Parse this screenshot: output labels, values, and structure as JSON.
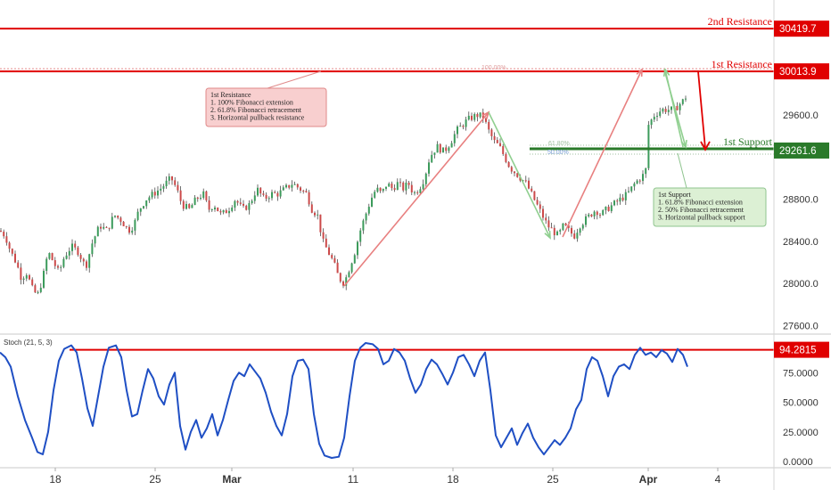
{
  "chart_data": [
    {
      "type": "candlestick",
      "yticks": [
        "30419.7",
        "30013.9",
        "29600.0",
        "29261.6",
        "28800.0",
        "28400.0",
        "28000.0",
        "27600.0"
      ],
      "ylim": [
        27500,
        30600
      ],
      "resistance_2": {
        "label": "2nd Resistance",
        "price": 30419.7,
        "badge": "30419.7"
      },
      "resistance_1": {
        "label": "1st Resistance",
        "price": 30013.9,
        "badge": "30013.9",
        "fib_label": "100.00%"
      },
      "support_1": {
        "label": "1st Support",
        "price": 29261.6,
        "badge": "29261.6",
        "fib_618": "61.80%",
        "fib_50": "50.00%"
      },
      "annotations": {
        "resistance_box": [
          "1st Resistance",
          "1. 100% Fibonacci extension",
          "2. 61.8% Fibonacci retracement",
          "3. Horizontal pullback resistance"
        ],
        "support_box": [
          "1st Support",
          "1. 61.8% Fibonacci extension",
          "2. 50% Fibonacci retracement",
          "3. Horizontal pullback support"
        ]
      },
      "close_path": [
        [
          0,
          28500
        ],
        [
          6,
          28450
        ],
        [
          12,
          28300
        ],
        [
          18,
          28200
        ],
        [
          24,
          28050
        ],
        [
          30,
          28100
        ],
        [
          36,
          27950
        ],
        [
          42,
          27880
        ],
        [
          48,
          28050
        ],
        [
          54,
          28300
        ],
        [
          60,
          28200
        ],
        [
          66,
          28100
        ],
        [
          72,
          28250
        ],
        [
          80,
          28350
        ],
        [
          88,
          28300
        ],
        [
          96,
          28150
        ],
        [
          104,
          28400
        ],
        [
          112,
          28550
        ],
        [
          120,
          28500
        ],
        [
          128,
          28650
        ],
        [
          136,
          28600
        ],
        [
          144,
          28500
        ],
        [
          150,
          28550
        ],
        [
          156,
          28700
        ],
        [
          164,
          28800
        ],
        [
          172,
          28850
        ],
        [
          180,
          28900
        ],
        [
          186,
          28950
        ],
        [
          192,
          29000
        ],
        [
          198,
          28900
        ],
        [
          204,
          28750
        ],
        [
          212,
          28700
        ],
        [
          220,
          28800
        ],
        [
          228,
          28850
        ],
        [
          234,
          28700
        ],
        [
          240,
          28750
        ],
        [
          248,
          28650
        ],
        [
          256,
          28700
        ],
        [
          264,
          28800
        ],
        [
          272,
          28700
        ],
        [
          280,
          28750
        ],
        [
          288,
          28900
        ],
        [
          296,
          28800
        ],
        [
          304,
          28850
        ],
        [
          312,
          28850
        ],
        [
          320,
          28900
        ],
        [
          328,
          28950
        ],
        [
          336,
          28900
        ],
        [
          344,
          28850
        ],
        [
          350,
          28700
        ],
        [
          356,
          28650
        ],
        [
          362,
          28400
        ],
        [
          368,
          28300
        ],
        [
          374,
          28200
        ],
        [
          380,
          28050
        ],
        [
          386,
          28000
        ],
        [
          392,
          28150
        ],
        [
          398,
          28300
        ],
        [
          404,
          28500
        ],
        [
          410,
          28650
        ],
        [
          416,
          28800
        ],
        [
          422,
          28900
        ],
        [
          428,
          28850
        ],
        [
          434,
          28950
        ],
        [
          440,
          28900
        ],
        [
          446,
          28950
        ],
        [
          452,
          28900
        ],
        [
          458,
          28950
        ],
        [
          464,
          28850
        ],
        [
          470,
          28900
        ],
        [
          476,
          29000
        ],
        [
          482,
          29200
        ],
        [
          490,
          29300
        ],
        [
          498,
          29250
        ],
        [
          506,
          29350
        ],
        [
          512,
          29450
        ],
        [
          518,
          29500
        ],
        [
          524,
          29550
        ],
        [
          530,
          29580
        ],
        [
          536,
          29600
        ],
        [
          542,
          29580
        ],
        [
          548,
          29450
        ],
        [
          554,
          29350
        ],
        [
          560,
          29300
        ],
        [
          566,
          29200
        ],
        [
          572,
          29100
        ],
        [
          578,
          29050
        ],
        [
          584,
          29000
        ],
        [
          590,
          28950
        ],
        [
          596,
          28850
        ],
        [
          602,
          28750
        ],
        [
          608,
          28650
        ],
        [
          614,
          28550
        ],
        [
          620,
          28500
        ],
        [
          626,
          28450
        ],
        [
          632,
          28550
        ],
        [
          638,
          28500
        ],
        [
          644,
          28450
        ],
        [
          650,
          28550
        ],
        [
          656,
          28600
        ],
        [
          662,
          28650
        ],
        [
          668,
          28700
        ],
        [
          674,
          28650
        ],
        [
          680,
          28700
        ],
        [
          688,
          28750
        ],
        [
          696,
          28800
        ],
        [
          704,
          28850
        ],
        [
          712,
          28950
        ],
        [
          718,
          29000
        ],
        [
          724,
          29050
        ],
        [
          727,
          29500
        ],
        [
          734,
          29600
        ],
        [
          742,
          29650
        ],
        [
          750,
          29650
        ],
        [
          756,
          29650
        ],
        [
          762,
          29700
        ],
        [
          768,
          29750
        ],
        [
          773,
          29850
        ]
      ]
    },
    {
      "type": "line",
      "title": "Stoch (21, 5, 3)",
      "yticks": [
        "94.2815",
        "75.0000",
        "50.0000",
        "25.0000",
        "0.0000"
      ],
      "level": {
        "value": 94.2815,
        "badge": "94.2815"
      },
      "series_color": "#2050c8",
      "values": [
        [
          0,
          92
        ],
        [
          6,
          88
        ],
        [
          12,
          80
        ],
        [
          20,
          55
        ],
        [
          28,
          35
        ],
        [
          36,
          20
        ],
        [
          42,
          8
        ],
        [
          48,
          6
        ],
        [
          54,
          25
        ],
        [
          60,
          60
        ],
        [
          66,
          85
        ],
        [
          72,
          95
        ],
        [
          80,
          98
        ],
        [
          86,
          92
        ],
        [
          92,
          70
        ],
        [
          98,
          45
        ],
        [
          104,
          30
        ],
        [
          110,
          55
        ],
        [
          116,
          80
        ],
        [
          122,
          96
        ],
        [
          130,
          98
        ],
        [
          136,
          88
        ],
        [
          142,
          60
        ],
        [
          148,
          38
        ],
        [
          154,
          40
        ],
        [
          160,
          60
        ],
        [
          166,
          78
        ],
        [
          172,
          70
        ],
        [
          178,
          55
        ],
        [
          184,
          48
        ],
        [
          190,
          65
        ],
        [
          196,
          75
        ],
        [
          202,
          30
        ],
        [
          208,
          10
        ],
        [
          214,
          25
        ],
        [
          220,
          35
        ],
        [
          226,
          20
        ],
        [
          232,
          28
        ],
        [
          238,
          40
        ],
        [
          244,
          22
        ],
        [
          250,
          35
        ],
        [
          256,
          52
        ],
        [
          262,
          68
        ],
        [
          268,
          75
        ],
        [
          274,
          72
        ],
        [
          280,
          82
        ],
        [
          286,
          76
        ],
        [
          292,
          70
        ],
        [
          298,
          58
        ],
        [
          304,
          42
        ],
        [
          310,
          30
        ],
        [
          316,
          22
        ],
        [
          322,
          40
        ],
        [
          328,
          72
        ],
        [
          334,
          85
        ],
        [
          340,
          86
        ],
        [
          346,
          78
        ],
        [
          352,
          40
        ],
        [
          358,
          15
        ],
        [
          364,
          5
        ],
        [
          372,
          3
        ],
        [
          380,
          4
        ],
        [
          386,
          20
        ],
        [
          392,
          55
        ],
        [
          398,
          85
        ],
        [
          404,
          96
        ],
        [
          410,
          100
        ],
        [
          418,
          99
        ],
        [
          424,
          95
        ],
        [
          430,
          82
        ],
        [
          436,
          85
        ],
        [
          442,
          95
        ],
        [
          448,
          92
        ],
        [
          454,
          85
        ],
        [
          460,
          70
        ],
        [
          466,
          58
        ],
        [
          472,
          65
        ],
        [
          478,
          78
        ],
        [
          484,
          86
        ],
        [
          490,
          82
        ],
        [
          496,
          74
        ],
        [
          502,
          65
        ],
        [
          508,
          75
        ],
        [
          514,
          88
        ],
        [
          520,
          90
        ],
        [
          526,
          82
        ],
        [
          532,
          72
        ],
        [
          538,
          85
        ],
        [
          544,
          92
        ],
        [
          550,
          60
        ],
        [
          556,
          22
        ],
        [
          562,
          12
        ],
        [
          568,
          20
        ],
        [
          574,
          28
        ],
        [
          580,
          14
        ],
        [
          586,
          24
        ],
        [
          592,
          32
        ],
        [
          598,
          20
        ],
        [
          604,
          12
        ],
        [
          610,
          6
        ],
        [
          616,
          12
        ],
        [
          622,
          18
        ],
        [
          628,
          14
        ],
        [
          634,
          20
        ],
        [
          640,
          28
        ],
        [
          646,
          44
        ],
        [
          652,
          52
        ],
        [
          658,
          78
        ],
        [
          664,
          88
        ],
        [
          670,
          85
        ],
        [
          676,
          72
        ],
        [
          682,
          55
        ],
        [
          688,
          72
        ],
        [
          694,
          80
        ],
        [
          700,
          82
        ],
        [
          706,
          78
        ],
        [
          712,
          90
        ],
        [
          718,
          96
        ],
        [
          724,
          90
        ],
        [
          730,
          92
        ],
        [
          736,
          88
        ],
        [
          742,
          94
        ],
        [
          748,
          91
        ],
        [
          754,
          84
        ],
        [
          760,
          95
        ],
        [
          766,
          90
        ],
        [
          771,
          80
        ]
      ]
    }
  ],
  "x_axis": {
    "labels": [
      {
        "text": "18",
        "x": 62
      },
      {
        "text": "25",
        "x": 174
      },
      {
        "text": "Mar",
        "x": 260
      },
      {
        "text": "11",
        "x": 396
      },
      {
        "text": "18",
        "x": 508
      },
      {
        "text": "25",
        "x": 620
      },
      {
        "text": "Apr",
        "x": 727
      },
      {
        "text": "4",
        "x": 805
      }
    ]
  },
  "colors": {
    "up": "#3c9b5b",
    "down": "#cc4a4a",
    "resistance": "#e00000",
    "support": "#2d8a2d",
    "arrow_red": "#e88080",
    "arrow_green": "#8fcf8f",
    "stoch": "#1f4fc4"
  }
}
